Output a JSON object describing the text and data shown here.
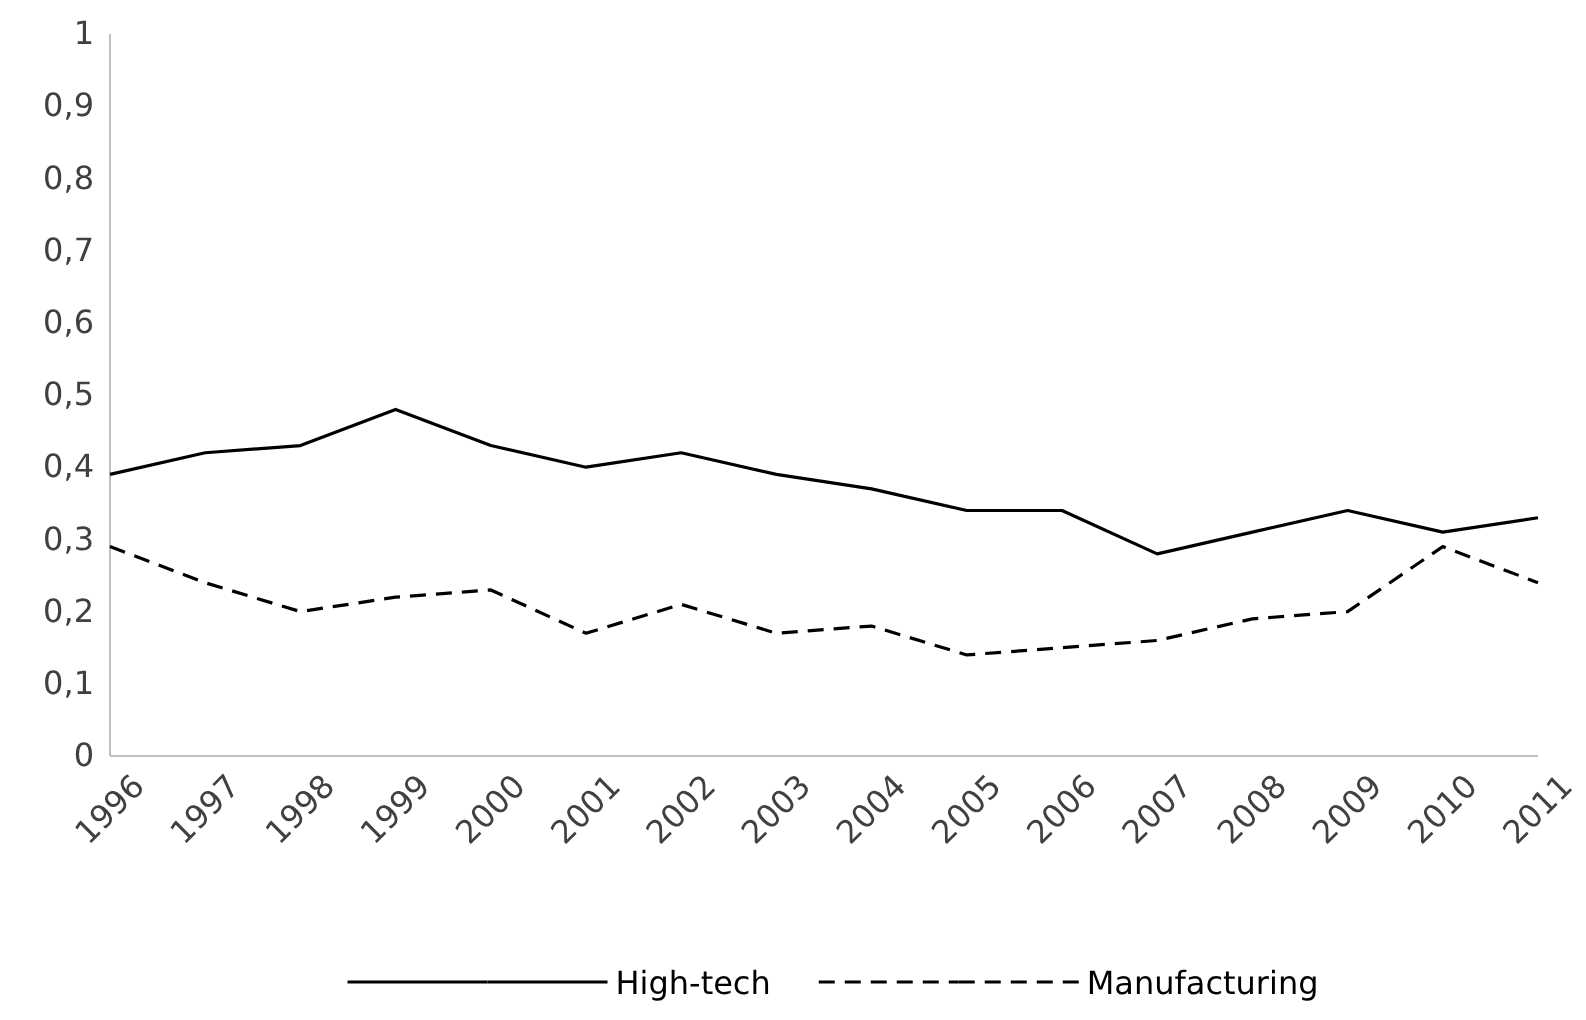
{
  "chart_data": {
    "type": "line",
    "categories": [
      "1996",
      "1997",
      "1998",
      "1999",
      "2000",
      "2001",
      "2002",
      "2003",
      "2004",
      "2005",
      "2006",
      "2007",
      "2008",
      "2009",
      "2010",
      "2011"
    ],
    "series": [
      {
        "name": "High-tech",
        "color": "#000000",
        "line_style": "solid",
        "values": [
          0.39,
          0.42,
          0.43,
          0.48,
          0.43,
          0.4,
          0.42,
          0.39,
          0.37,
          0.34,
          0.34,
          0.28,
          0.31,
          0.34,
          0.31,
          0.33
        ]
      },
      {
        "name": "Manufacturing",
        "color": "#000000",
        "line_style": "dashed",
        "values": [
          0.29,
          0.24,
          0.2,
          0.22,
          0.23,
          0.17,
          0.21,
          0.17,
          0.18,
          0.14,
          0.15,
          0.16,
          0.19,
          0.2,
          0.29,
          0.24
        ]
      }
    ],
    "ylim": [
      0,
      1
    ],
    "yticks": [
      0,
      {
        "value": 0.1,
        "label": "0,1"
      },
      {
        "value": 0.2,
        "label": "0,2"
      },
      {
        "value": 0.3,
        "label": "0,3"
      },
      {
        "value": 0.4,
        "label": "0,4"
      },
      {
        "value": 0.5,
        "label": "0,5"
      },
      {
        "value": 0.6,
        "label": "0,6"
      },
      {
        "value": 0.7,
        "label": "0,7"
      },
      {
        "value": 0.8,
        "label": "0,8"
      },
      {
        "value": 0.9,
        "label": "0,9"
      },
      1
    ],
    "grid": false,
    "legend": "bottom",
    "marker": "none"
  }
}
